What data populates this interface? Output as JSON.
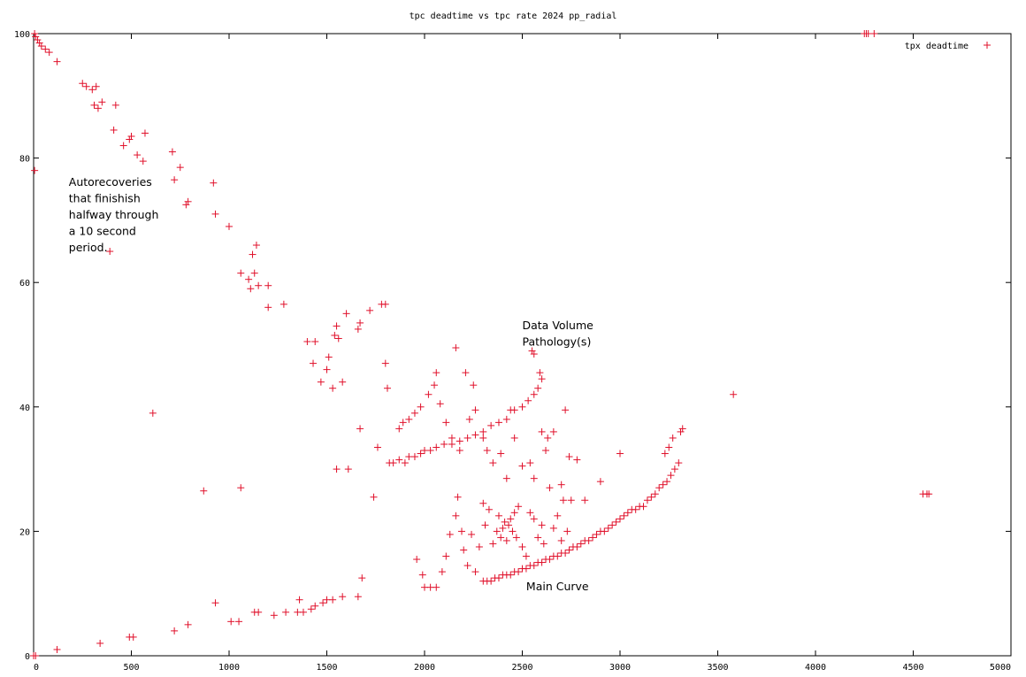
{
  "chart_data": {
    "type": "scatter",
    "title": "tpc deadtime vs tpc rate 2024 pp_radial",
    "xlabel": "",
    "ylabel": "",
    "xlim": [
      0,
      5000
    ],
    "ylim": [
      0,
      100
    ],
    "x_ticks": [
      0,
      500,
      1000,
      1500,
      2000,
      2500,
      3000,
      3500,
      4000,
      4500,
      5000
    ],
    "y_ticks": [
      0,
      20,
      40,
      60,
      80,
      100
    ],
    "grid": false,
    "legend_position": "top-right",
    "marker": "+",
    "series": [
      {
        "name": "tpx deadtime",
        "color": "#e0102a",
        "points": [
          [
            5,
            100
          ],
          [
            10,
            99.5
          ],
          [
            20,
            99
          ],
          [
            30,
            98.5
          ],
          [
            40,
            98
          ],
          [
            60,
            97.5
          ],
          [
            80,
            97
          ],
          [
            120,
            95.5
          ],
          [
            250,
            92
          ],
          [
            270,
            91.5
          ],
          [
            300,
            91
          ],
          [
            320,
            91.5
          ],
          [
            310,
            88.5
          ],
          [
            330,
            88
          ],
          [
            350,
            89
          ],
          [
            420,
            88.5
          ],
          [
            410,
            84.5
          ],
          [
            460,
            82
          ],
          [
            490,
            83
          ],
          [
            500,
            83.5
          ],
          [
            530,
            80.5
          ],
          [
            560,
            79.5
          ],
          [
            570,
            84
          ],
          [
            710,
            81
          ],
          [
            720,
            76.5
          ],
          [
            750,
            78.5
          ],
          [
            780,
            72.5
          ],
          [
            790,
            73
          ],
          [
            920,
            76
          ],
          [
            930,
            71
          ],
          [
            1000,
            69
          ],
          [
            1060,
            61.5
          ],
          [
            1100,
            60.5
          ],
          [
            1110,
            59
          ],
          [
            1120,
            64.5
          ],
          [
            1130,
            61.5
          ],
          [
            1140,
            66
          ],
          [
            1150,
            59.5
          ],
          [
            1200,
            59.5
          ],
          [
            1200,
            56
          ],
          [
            1280,
            56.5
          ],
          [
            5,
            78
          ],
          [
            390,
            65
          ],
          [
            1400,
            50.5
          ],
          [
            1440,
            50.5
          ],
          [
            1430,
            47
          ],
          [
            1470,
            44
          ],
          [
            1500,
            46
          ],
          [
            1510,
            48
          ],
          [
            1530,
            43
          ],
          [
            1540,
            51.5
          ],
          [
            1550,
            53
          ],
          [
            1560,
            51
          ],
          [
            1580,
            44
          ],
          [
            1600,
            55
          ],
          [
            1660,
            52.5
          ],
          [
            1670,
            53.5
          ],
          [
            1720,
            55.5
          ],
          [
            1780,
            56.5
          ],
          [
            1800,
            56.5
          ],
          [
            1800,
            47
          ],
          [
            1810,
            43
          ],
          [
            610,
            39
          ],
          [
            870,
            26.5
          ],
          [
            1060,
            27
          ],
          [
            1550,
            30
          ],
          [
            1610,
            30
          ],
          [
            1670,
            36.5
          ],
          [
            1740,
            25.5
          ],
          [
            1760,
            33.5
          ],
          [
            0,
            0
          ],
          [
            10,
            0
          ],
          [
            120,
            1
          ],
          [
            340,
            2
          ],
          [
            490,
            3
          ],
          [
            510,
            3
          ],
          [
            720,
            4
          ],
          [
            790,
            5
          ],
          [
            930,
            8.5
          ],
          [
            1010,
            5.5
          ],
          [
            1050,
            5.5
          ],
          [
            1130,
            7
          ],
          [
            1150,
            7
          ],
          [
            1230,
            6.5
          ],
          [
            1290,
            7
          ],
          [
            1350,
            7
          ],
          [
            1360,
            9
          ],
          [
            1380,
            7
          ],
          [
            1420,
            7.5
          ],
          [
            1440,
            8
          ],
          [
            1480,
            8.5
          ],
          [
            1500,
            9
          ],
          [
            1530,
            9
          ],
          [
            1580,
            9.5
          ],
          [
            1660,
            9.5
          ],
          [
            1680,
            12.5
          ],
          [
            1820,
            31
          ],
          [
            1840,
            31
          ],
          [
            1870,
            31.5
          ],
          [
            1900,
            31
          ],
          [
            1920,
            32
          ],
          [
            1950,
            32
          ],
          [
            1980,
            32.5
          ],
          [
            2000,
            33
          ],
          [
            2030,
            33
          ],
          [
            2060,
            33.5
          ],
          [
            2100,
            34
          ],
          [
            2140,
            34
          ],
          [
            2180,
            34.5
          ],
          [
            2220,
            35
          ],
          [
            2260,
            35.5
          ],
          [
            2300,
            36
          ],
          [
            2340,
            37
          ],
          [
            2380,
            37.5
          ],
          [
            2420,
            38
          ],
          [
            2460,
            39.5
          ],
          [
            2500,
            40
          ],
          [
            2530,
            41
          ],
          [
            2560,
            42
          ],
          [
            2580,
            43
          ],
          [
            1870,
            36.5
          ],
          [
            1890,
            37.5
          ],
          [
            1920,
            38
          ],
          [
            1950,
            39
          ],
          [
            1980,
            40
          ],
          [
            2020,
            42
          ],
          [
            2050,
            43.5
          ],
          [
            2060,
            45.5
          ],
          [
            2080,
            40.5
          ],
          [
            2110,
            37.5
          ],
          [
            2140,
            35
          ],
          [
            2160,
            49.5
          ],
          [
            2180,
            33
          ],
          [
            2210,
            45.5
          ],
          [
            2230,
            38
          ],
          [
            2550,
            49
          ],
          [
            2560,
            48.5
          ],
          [
            2590,
            45.5
          ],
          [
            2600,
            44.5
          ],
          [
            2250,
            43.5
          ],
          [
            2260,
            39.5
          ],
          [
            2300,
            35
          ],
          [
            2320,
            33
          ],
          [
            2350,
            31
          ],
          [
            2390,
            32.5
          ],
          [
            2420,
            28.5
          ],
          [
            2440,
            39.5
          ],
          [
            2460,
            35
          ],
          [
            2500,
            30.5
          ],
          [
            2540,
            31
          ],
          [
            2560,
            28.5
          ],
          [
            2600,
            36
          ],
          [
            2620,
            33
          ],
          [
            2630,
            35
          ],
          [
            2660,
            36
          ],
          [
            2720,
            39.5
          ],
          [
            2700,
            27.5
          ],
          [
            2740,
            32
          ],
          [
            2780,
            31.5
          ],
          [
            1960,
            15.5
          ],
          [
            1990,
            13
          ],
          [
            2000,
            11
          ],
          [
            2030,
            11
          ],
          [
            2060,
            11
          ],
          [
            2090,
            13.5
          ],
          [
            2110,
            16
          ],
          [
            2130,
            19.5
          ],
          [
            2160,
            22.5
          ],
          [
            2170,
            25.5
          ],
          [
            2190,
            20
          ],
          [
            2200,
            17
          ],
          [
            2220,
            14.5
          ],
          [
            2240,
            19.5
          ],
          [
            2260,
            13.5
          ],
          [
            2280,
            17.5
          ],
          [
            2300,
            24.5
          ],
          [
            2310,
            21
          ],
          [
            2330,
            23.5
          ],
          [
            2350,
            18
          ],
          [
            2370,
            20
          ],
          [
            2380,
            22.5
          ],
          [
            2390,
            19
          ],
          [
            2400,
            20.5
          ],
          [
            2410,
            21.5
          ],
          [
            2420,
            18.5
          ],
          [
            2430,
            21
          ],
          [
            2440,
            22
          ],
          [
            2450,
            20
          ],
          [
            2460,
            23
          ],
          [
            2470,
            19
          ],
          [
            2480,
            24
          ],
          [
            2500,
            17.5
          ],
          [
            2520,
            16
          ],
          [
            2540,
            23
          ],
          [
            2560,
            22
          ],
          [
            2580,
            19
          ],
          [
            2600,
            21
          ],
          [
            2610,
            18
          ],
          [
            2640,
            27
          ],
          [
            2660,
            20.5
          ],
          [
            2680,
            22.5
          ],
          [
            2700,
            18.5
          ],
          [
            2710,
            25
          ],
          [
            2730,
            20
          ],
          [
            2750,
            25
          ],
          [
            2300,
            12
          ],
          [
            2320,
            12
          ],
          [
            2340,
            12
          ],
          [
            2360,
            12.5
          ],
          [
            2380,
            12.5
          ],
          [
            2400,
            13
          ],
          [
            2420,
            13
          ],
          [
            2440,
            13
          ],
          [
            2460,
            13.5
          ],
          [
            2480,
            13.5
          ],
          [
            2500,
            14
          ],
          [
            2520,
            14
          ],
          [
            2540,
            14.5
          ],
          [
            2560,
            14.5
          ],
          [
            2580,
            15
          ],
          [
            2600,
            15
          ],
          [
            2620,
            15.5
          ],
          [
            2640,
            15.5
          ],
          [
            2660,
            16
          ],
          [
            2680,
            16
          ],
          [
            2700,
            16.5
          ],
          [
            2720,
            16.5
          ],
          [
            2740,
            17
          ],
          [
            2760,
            17.5
          ],
          [
            2780,
            17.5
          ],
          [
            2800,
            18
          ],
          [
            2820,
            18.5
          ],
          [
            2840,
            18.5
          ],
          [
            2860,
            19
          ],
          [
            2880,
            19.5
          ],
          [
            2900,
            20
          ],
          [
            2920,
            20
          ],
          [
            2940,
            20.5
          ],
          [
            2960,
            21
          ],
          [
            2980,
            21.5
          ],
          [
            3000,
            22
          ],
          [
            3020,
            22.5
          ],
          [
            3040,
            23
          ],
          [
            3060,
            23.5
          ],
          [
            3080,
            23.5
          ],
          [
            3100,
            24
          ],
          [
            3120,
            24
          ],
          [
            3140,
            25
          ],
          [
            3160,
            25.5
          ],
          [
            3180,
            26
          ],
          [
            3200,
            27
          ],
          [
            3220,
            27.5
          ],
          [
            3240,
            28
          ],
          [
            3260,
            29
          ],
          [
            3280,
            30
          ],
          [
            3300,
            31
          ],
          [
            3310,
            36
          ],
          [
            3320,
            36.5
          ],
          [
            3230,
            32.5
          ],
          [
            3250,
            33.5
          ],
          [
            3270,
            35
          ],
          [
            3000,
            32.5
          ],
          [
            2900,
            28
          ],
          [
            2820,
            25
          ],
          [
            3580,
            42
          ],
          [
            4250,
            100
          ],
          [
            4260,
            100
          ],
          [
            4270,
            100
          ],
          [
            4300,
            100
          ],
          [
            4550,
            26
          ],
          [
            4570,
            26
          ],
          [
            4580,
            26
          ]
        ]
      }
    ],
    "annotations": [
      {
        "text": "Autorecoveries\nthat finishish\nhalfway through\na 10 second\nperiod.",
        "x": 180,
        "y": 75.5
      },
      {
        "text": "Data Volume\nPathology(s)",
        "x": 2500,
        "y": 52.5
      },
      {
        "text": "Main Curve",
        "x": 2520,
        "y": 10.5
      }
    ]
  }
}
